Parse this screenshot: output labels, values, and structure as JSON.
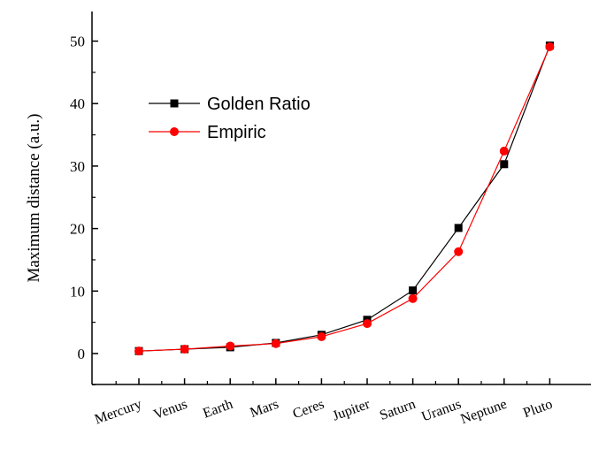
{
  "chart_data": {
    "type": "line",
    "categories": [
      "Mercury",
      "Venus",
      "Earth",
      "Mars",
      "Ceres",
      "Jupiter",
      "Saturn",
      "Uranus",
      "Neptune",
      "Pluto"
    ],
    "series": [
      {
        "name": "Golden Ratio",
        "marker": "square",
        "color": "#000000",
        "values": [
          0.4,
          0.7,
          1.0,
          1.7,
          3.0,
          5.4,
          10.1,
          20.1,
          30.3,
          49.3
        ]
      },
      {
        "name": "Empiric",
        "marker": "circle",
        "color": "#ff0000",
        "values": [
          0.4,
          0.7,
          1.2,
          1.6,
          2.7,
          4.8,
          8.8,
          16.3,
          32.4,
          49.1
        ]
      }
    ],
    "xlabel": "",
    "ylabel": "Maximum distance (a.u.)",
    "ylim": [
      -5,
      55
    ],
    "yticks": [
      0,
      10,
      20,
      30,
      40,
      50
    ],
    "grid": false,
    "legend_position": "top-left"
  }
}
